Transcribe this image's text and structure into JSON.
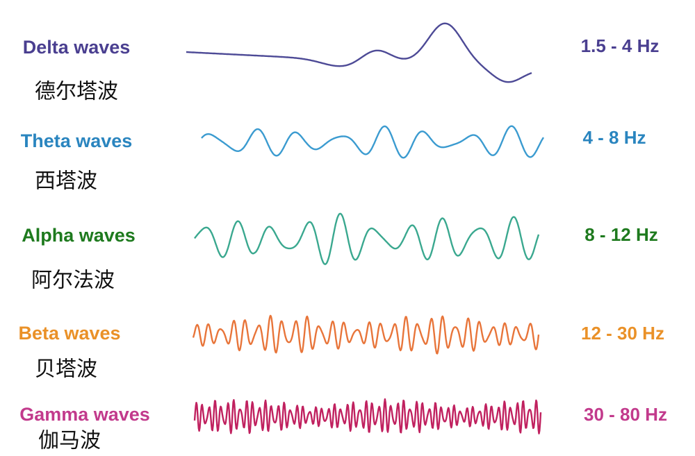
{
  "waves": [
    {
      "name": "Delta waves",
      "chinese": "德尔塔波",
      "frequency": "1.5 - 4 Hz"
    },
    {
      "name": "Theta waves",
      "chinese": "西塔波",
      "frequency": "4 - 8 Hz"
    },
    {
      "name": "Alpha waves",
      "chinese": "阿尔法波",
      "frequency": "8 - 12 Hz"
    },
    {
      "name": "Beta waves",
      "chinese": "贝塔波",
      "frequency": "12 - 30 Hz"
    },
    {
      "name": "Gamma waves",
      "chinese": "伽马波",
      "frequency": "30 - 80 Hz"
    }
  ]
}
